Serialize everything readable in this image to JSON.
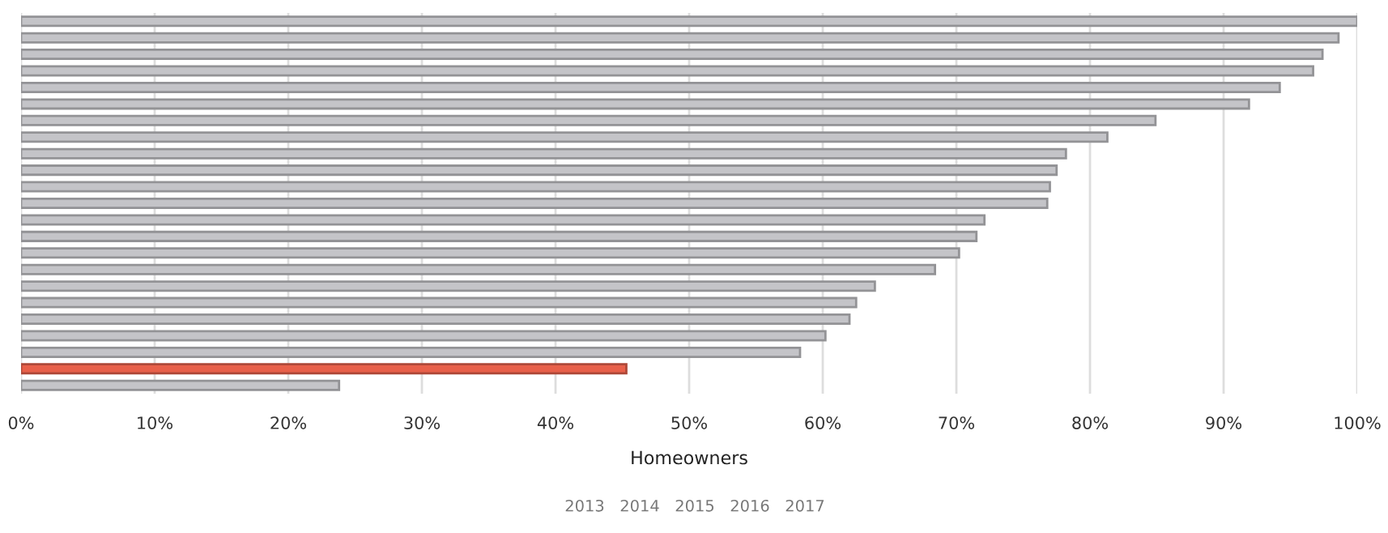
{
  "chart_data": {
    "type": "bar",
    "orientation": "horizontal",
    "xlabel": "Homeowners",
    "categories": [
      null,
      null,
      null,
      null,
      null,
      null,
      null,
      null,
      null,
      null,
      null,
      null,
      null,
      null,
      null,
      null,
      null,
      null,
      null,
      null,
      null,
      null,
      null
    ],
    "values": [
      100,
      98.6,
      97.4,
      96.7,
      94.2,
      91.9,
      84.9,
      81.3,
      78.2,
      77.5,
      77.0,
      76.8,
      72.1,
      71.5,
      70.2,
      68.4,
      63.9,
      62.5,
      62.0,
      60.2,
      58.3,
      45.3,
      23.8
    ],
    "colors": [
      "#c4c4c8",
      "#c4c4c8",
      "#c4c4c8",
      "#c4c4c8",
      "#c4c4c8",
      "#c4c4c8",
      "#c4c4c8",
      "#c4c4c8",
      "#c4c4c8",
      "#c4c4c8",
      "#c4c4c8",
      "#c4c4c8",
      "#c4c4c8",
      "#c4c4c8",
      "#c4c4c8",
      "#c4c4c8",
      "#c4c4c8",
      "#c4c4c8",
      "#c4c4c8",
      "#c4c4c8",
      "#c4c4c8",
      "#e8604a",
      "#c4c4c8"
    ],
    "xlim": [
      0,
      100
    ],
    "xticks": [
      {
        "value": 0,
        "label": "0%"
      },
      {
        "value": 10,
        "label": "10%"
      },
      {
        "value": 20,
        "label": "20%"
      },
      {
        "value": 30,
        "label": "30%"
      },
      {
        "value": 40,
        "label": "40%"
      },
      {
        "value": 50,
        "label": "50%"
      },
      {
        "value": 60,
        "label": "60%"
      },
      {
        "value": 70,
        "label": "70%"
      },
      {
        "value": 80,
        "label": "80%"
      },
      {
        "value": 90,
        "label": "90%"
      },
      {
        "value": 100,
        "label": "100%"
      }
    ],
    "grid": "x",
    "annotations": [
      "2013",
      "2014",
      "2015",
      "2016",
      "2017"
    ]
  }
}
